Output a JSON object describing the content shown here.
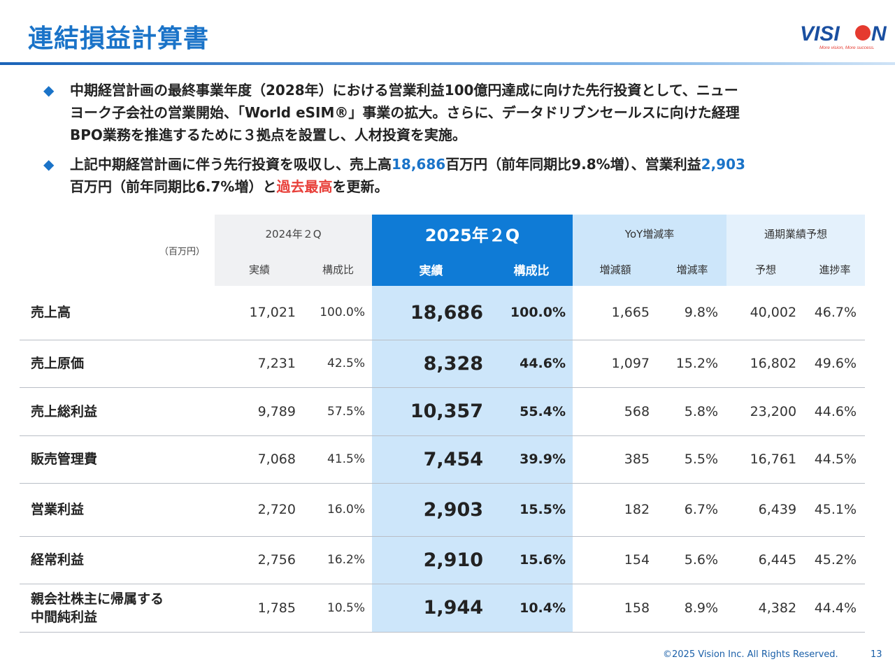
{
  "title": "連結損益計算書",
  "logo": {
    "brand": "VISION",
    "tagline": "More vision, More success."
  },
  "bullets": [
    {
      "icon": "diamond-bullet",
      "line1": "中期経営計画の最終事業年度（2028年）における営業利益100億円達成に向けた先行投資として、ニュー",
      "line2": "ヨーク子会社の営業開始、「World eSIM®」事業の拡大。さらに、データドリブンセールスに向けた経理",
      "line3": "BPO業務を推進するために３拠点を設置し、人材投資を実施。"
    },
    {
      "icon": "diamond-bullet",
      "p1": "上記中期経営計画に伴う先行投資を吸収し、売上高",
      "sales": "18,686",
      "p2": "百万円（前年同期比9.8%増）、営業利益",
      "op": "2,903",
      "p3": "百万円（前年同期比6.7%増）と",
      "record": "過去最高",
      "p4": "を更新。"
    }
  ],
  "table": {
    "unit": "（百万円）",
    "groups": {
      "prev": "2024年２Q",
      "cur": "2025年２Q",
      "yoy": "YoY増減率",
      "fy": "通期業績予想"
    },
    "cols": {
      "prev_act": "実績",
      "prev_ratio": "構成比",
      "cur_act": "実績",
      "cur_ratio": "構成比",
      "diff": "増減額",
      "rate": "増減率",
      "forecast": "予想",
      "progress": "進捗率"
    },
    "rows": [
      {
        "label": "売上高",
        "prev": "17,021",
        "prev_ratio": "100.0%",
        "cur": "18,686",
        "cur_ratio": "100.0%",
        "diff": "1,665",
        "rate": "9.8%",
        "forecast": "40,002",
        "progress": "46.7%"
      },
      {
        "label": "売上原価",
        "prev": "7,231",
        "prev_ratio": "42.5%",
        "cur": "8,328",
        "cur_ratio": "44.6%",
        "diff": "1,097",
        "rate": "15.2%",
        "forecast": "16,802",
        "progress": "49.6%"
      },
      {
        "label": "売上総利益",
        "prev": "9,789",
        "prev_ratio": "57.5%",
        "cur": "10,357",
        "cur_ratio": "55.4%",
        "diff": "568",
        "rate": "5.8%",
        "forecast": "23,200",
        "progress": "44.6%"
      },
      {
        "label": "販売管理費",
        "prev": "7,068",
        "prev_ratio": "41.5%",
        "cur": "7,454",
        "cur_ratio": "39.9%",
        "diff": "385",
        "rate": "5.5%",
        "forecast": "16,761",
        "progress": "44.5%"
      },
      {
        "label": "営業利益",
        "prev": "2,720",
        "prev_ratio": "16.0%",
        "cur": "2,903",
        "cur_ratio": "15.5%",
        "diff": "182",
        "rate": "6.7%",
        "forecast": "6,439",
        "progress": "45.1%"
      },
      {
        "label": "経常利益",
        "prev": "2,756",
        "prev_ratio": "16.2%",
        "cur": "2,910",
        "cur_ratio": "15.6%",
        "diff": "154",
        "rate": "5.6%",
        "forecast": "6,445",
        "progress": "45.2%"
      },
      {
        "label": "親会社株主に帰属する",
        "label2": "中間純利益",
        "prev": "1,785",
        "prev_ratio": "10.5%",
        "cur": "1,944",
        "cur_ratio": "10.4%",
        "diff": "158",
        "rate": "8.9%",
        "forecast": "4,382",
        "progress": "44.4%"
      }
    ]
  },
  "footer": {
    "copyright": "©2025 Vision Inc. All Rights Reserved.",
    "page": "13"
  }
}
